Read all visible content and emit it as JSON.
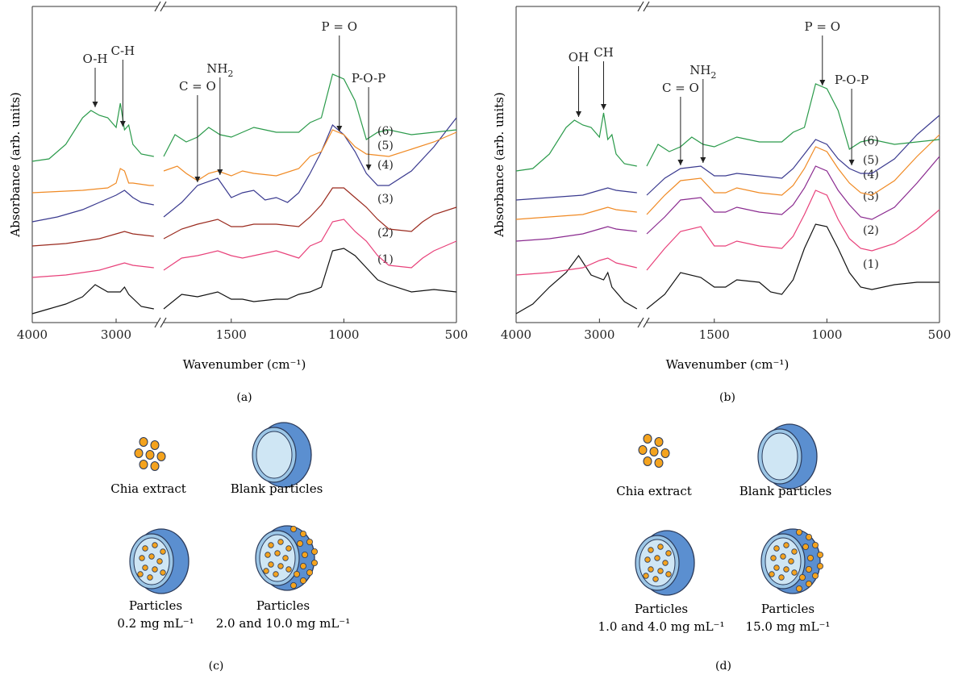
{
  "colors": {
    "s1": "#111111",
    "s2": "#e8417a",
    "s3_a": "#9a2a1e",
    "s3_b": "#8a2a8f",
    "s4": "#3a3a8f",
    "s5": "#f08a24",
    "s6": "#2a9a4a",
    "particle": "#f4a31e",
    "shell_dark": "#5b8fd0",
    "shell_light": "#cfe6f4",
    "outline": "#2a3a5a"
  },
  "chart_data": [
    {
      "panel_label": "(a)",
      "type": "line",
      "xlabel": "Wavenumber (cm⁻¹)",
      "ylabel": "Absorbance (arb. units)",
      "xlim": [
        4000,
        500
      ],
      "axis_break": [
        2500,
        1800
      ],
      "xticks": [
        "4000",
        "3000",
        "1500",
        "1000",
        "500"
      ],
      "series": [
        {
          "name": "(1)",
          "color_key": "s1",
          "offset": 0,
          "x": [
            4000,
            3800,
            3600,
            3400,
            3250,
            3100,
            2950,
            2900,
            2850,
            2700,
            2550,
            1800,
            1720,
            1650,
            1560,
            1500,
            1450,
            1400,
            1300,
            1250,
            1200,
            1150,
            1100,
            1050,
            1000,
            950,
            900,
            850,
            800,
            700,
            600,
            500
          ],
          "y": [
            0.1,
            0.3,
            0.5,
            0.8,
            1.3,
            1.0,
            1.0,
            1.2,
            0.9,
            0.4,
            0.3,
            0.3,
            0.9,
            0.8,
            1.0,
            0.7,
            0.7,
            0.6,
            0.7,
            0.7,
            0.9,
            1.0,
            1.2,
            2.7,
            2.8,
            2.5,
            2.0,
            1.5,
            1.3,
            1.0,
            1.1,
            1.0
          ]
        },
        {
          "name": "(2)",
          "color_key": "s2",
          "offset": 1.5,
          "x": [
            4000,
            3600,
            3200,
            3000,
            2900,
            2800,
            2550,
            1800,
            1720,
            1650,
            1560,
            1500,
            1450,
            1400,
            1300,
            1200,
            1150,
            1100,
            1050,
            1000,
            950,
            900,
            850,
            800,
            700,
            650,
            600,
            500
          ],
          "y": [
            0.1,
            0.2,
            0.4,
            0.6,
            0.7,
            0.6,
            0.5,
            0.4,
            0.9,
            1.0,
            1.2,
            1.0,
            0.9,
            1.0,
            1.2,
            0.9,
            1.4,
            1.6,
            2.4,
            2.5,
            2.0,
            1.6,
            1.0,
            0.6,
            0.5,
            0.9,
            1.2,
            1.6
          ]
        },
        {
          "name": "(3)",
          "color_key": "s3_a",
          "offset": 2.8,
          "x": [
            4000,
            3600,
            3200,
            3000,
            2900,
            2800,
            2550,
            1800,
            1720,
            1650,
            1560,
            1500,
            1450,
            1400,
            1300,
            1200,
            1150,
            1100,
            1050,
            1000,
            950,
            900,
            850,
            800,
            700,
            650,
            600,
            500
          ],
          "y": [
            0.1,
            0.2,
            0.4,
            0.6,
            0.7,
            0.6,
            0.5,
            0.4,
            0.8,
            1.0,
            1.2,
            0.9,
            0.9,
            1.0,
            1.0,
            0.9,
            1.3,
            1.8,
            2.5,
            2.5,
            2.1,
            1.7,
            1.2,
            0.8,
            0.7,
            1.1,
            1.4,
            1.7
          ]
        },
        {
          "name": "(4)",
          "color_key": "s4",
          "offset": 3.8,
          "x": [
            4000,
            3700,
            3400,
            3200,
            3000,
            2900,
            2800,
            2700,
            2550,
            1800,
            1720,
            1650,
            1560,
            1500,
            1450,
            1400,
            1350,
            1300,
            1250,
            1200,
            1150,
            1100,
            1050,
            1000,
            950,
            900,
            850,
            800,
            700,
            600,
            500
          ],
          "y": [
            0.1,
            0.3,
            0.6,
            0.9,
            1.2,
            1.4,
            1.1,
            0.9,
            0.8,
            0.3,
            0.9,
            1.6,
            1.9,
            1.1,
            1.3,
            1.4,
            1.0,
            1.1,
            0.9,
            1.3,
            2.1,
            3.0,
            4.1,
            3.7,
            3.0,
            2.1,
            1.6,
            1.6,
            2.2,
            3.2,
            4.4
          ]
        },
        {
          "name": "(5)",
          "color_key": "s5",
          "offset": 5.0,
          "x": [
            4000,
            3400,
            3100,
            3000,
            2950,
            2900,
            2850,
            2800,
            2600,
            2550,
            1800,
            1740,
            1700,
            1650,
            1600,
            1560,
            1500,
            1450,
            1400,
            1300,
            1200,
            1150,
            1100,
            1050,
            1000,
            950,
            900,
            800,
            700,
            600,
            500
          ],
          "y": [
            0.1,
            0.2,
            0.3,
            0.5,
            1.1,
            1.0,
            0.5,
            0.5,
            0.4,
            0.4,
            1.0,
            1.2,
            0.9,
            0.6,
            0.9,
            1.0,
            0.8,
            1.0,
            0.9,
            0.8,
            1.1,
            1.6,
            1.8,
            2.7,
            2.5,
            2.0,
            1.7,
            1.6,
            1.9,
            2.2,
            2.6
          ]
        },
        {
          "name": "(6)",
          "color_key": "s6",
          "offset": 6.3,
          "x": [
            4000,
            3800,
            3600,
            3400,
            3300,
            3200,
            3100,
            3000,
            2950,
            2900,
            2850,
            2800,
            2700,
            2550,
            1800,
            1750,
            1700,
            1650,
            1600,
            1550,
            1500,
            1450,
            1400,
            1350,
            1300,
            1250,
            1200,
            1150,
            1100,
            1050,
            1000,
            950,
            900,
            850,
            800,
            700,
            600,
            500
          ],
          "y": [
            0.1,
            0.2,
            0.8,
            1.9,
            2.2,
            2.0,
            1.9,
            1.5,
            2.5,
            1.4,
            1.6,
            0.8,
            0.4,
            0.3,
            0.3,
            1.2,
            0.9,
            1.1,
            1.5,
            1.2,
            1.1,
            1.3,
            1.5,
            1.4,
            1.3,
            1.3,
            1.3,
            1.7,
            1.9,
            3.7,
            3.5,
            2.6,
            1.0,
            1.3,
            1.4,
            1.2,
            1.3,
            1.4
          ]
        }
      ],
      "annotations": [
        {
          "text": "O-H",
          "x": 3250,
          "tip_series": "(6)"
        },
        {
          "text": "C-H",
          "x": 2920,
          "tip_series": "(6)"
        },
        {
          "text": "C = O",
          "x": 1650,
          "tip_series": "(4)"
        },
        {
          "text": "NH",
          "sub": "2",
          "x": 1550,
          "tip_series": "(4)"
        },
        {
          "text": "P = O",
          "x": 1020,
          "tip_series": "(5)"
        },
        {
          "text": "P-O-P",
          "x": 890,
          "tip_series": "(4)"
        }
      ]
    },
    {
      "panel_label": "(b)",
      "type": "line",
      "xlabel": "Wavenumber (cm⁻¹)",
      "ylabel": "Absorbance (arb. units)",
      "xlim": [
        4000,
        500
      ],
      "axis_break": [
        2500,
        1800
      ],
      "xticks": [
        "4000",
        "3000",
        "1500",
        "1000",
        "500"
      ],
      "series": [
        {
          "name": "(1)",
          "color_key": "s1",
          "offset": 0,
          "x": [
            4000,
            3800,
            3600,
            3400,
            3250,
            3100,
            2950,
            2900,
            2850,
            2700,
            2550,
            1800,
            1720,
            1650,
            1560,
            1500,
            1450,
            1400,
            1300,
            1250,
            1200,
            1150,
            1100,
            1050,
            1000,
            950,
            900,
            850,
            800,
            700,
            600,
            500
          ],
          "y": [
            0.1,
            0.5,
            1.2,
            1.8,
            2.5,
            1.7,
            1.5,
            1.8,
            1.2,
            0.6,
            0.3,
            0.3,
            0.9,
            1.8,
            1.6,
            1.2,
            1.2,
            1.5,
            1.4,
            1.0,
            0.9,
            1.5,
            2.8,
            3.8,
            3.7,
            2.8,
            1.8,
            1.2,
            1.1,
            1.3,
            1.4,
            1.4
          ]
        },
        {
          "name": "(2)",
          "color_key": "s2",
          "offset": 1.6,
          "x": [
            4000,
            3600,
            3200,
            3000,
            2900,
            2800,
            2550,
            1800,
            1720,
            1650,
            1560,
            1500,
            1450,
            1400,
            1300,
            1200,
            1150,
            1100,
            1050,
            1000,
            950,
            900,
            850,
            800,
            700,
            600,
            500
          ],
          "y": [
            0.1,
            0.2,
            0.4,
            0.7,
            0.8,
            0.6,
            0.4,
            0.3,
            1.2,
            1.9,
            2.1,
            1.3,
            1.3,
            1.5,
            1.3,
            1.2,
            1.7,
            2.6,
            3.6,
            3.4,
            2.4,
            1.6,
            1.2,
            1.1,
            1.4,
            2.0,
            2.8
          ]
        },
        {
          "name": "(3)",
          "color_key": "s3_b",
          "offset": 3.0,
          "x": [
            4000,
            3600,
            3200,
            3000,
            2900,
            2800,
            2550,
            1800,
            1720,
            1650,
            1560,
            1500,
            1450,
            1400,
            1300,
            1200,
            1150,
            1100,
            1050,
            1000,
            950,
            900,
            850,
            800,
            700,
            600,
            500
          ],
          "y": [
            0.1,
            0.2,
            0.4,
            0.6,
            0.7,
            0.6,
            0.5,
            0.4,
            1.1,
            1.8,
            1.9,
            1.3,
            1.3,
            1.5,
            1.3,
            1.2,
            1.6,
            2.3,
            3.2,
            3.0,
            2.2,
            1.6,
            1.1,
            1.0,
            1.5,
            2.5,
            3.6
          ]
        },
        {
          "name": "(4)",
          "color_key": "s5",
          "offset": 3.9,
          "x": [
            4000,
            3600,
            3200,
            3000,
            2900,
            2800,
            2550,
            1800,
            1720,
            1650,
            1560,
            1500,
            1450,
            1400,
            1300,
            1200,
            1150,
            1100,
            1050,
            1000,
            950,
            900,
            850,
            800,
            700,
            600,
            500
          ],
          "y": [
            0.1,
            0.2,
            0.3,
            0.5,
            0.6,
            0.5,
            0.4,
            0.3,
            1.1,
            1.7,
            1.8,
            1.2,
            1.2,
            1.4,
            1.2,
            1.1,
            1.5,
            2.2,
            3.1,
            2.9,
            2.2,
            1.6,
            1.2,
            1.1,
            1.7,
            2.7,
            3.6
          ]
        },
        {
          "name": "(5)",
          "color_key": "s4",
          "offset": 4.7,
          "x": [
            4000,
            3600,
            3200,
            3000,
            2900,
            2800,
            2550,
            1800,
            1720,
            1650,
            1560,
            1500,
            1450,
            1400,
            1300,
            1200,
            1150,
            1100,
            1050,
            1000,
            950,
            900,
            850,
            800,
            700,
            600,
            500
          ],
          "y": [
            0.1,
            0.2,
            0.3,
            0.5,
            0.6,
            0.5,
            0.4,
            0.3,
            1.0,
            1.4,
            1.5,
            1.1,
            1.1,
            1.2,
            1.1,
            1.0,
            1.4,
            2.0,
            2.6,
            2.4,
            1.8,
            1.4,
            1.2,
            1.2,
            1.8,
            2.8,
            3.6
          ]
        },
        {
          "name": "(6)",
          "color_key": "s6",
          "offset": 5.9,
          "x": [
            4000,
            3800,
            3600,
            3400,
            3300,
            3200,
            3100,
            3000,
            2950,
            2900,
            2850,
            2800,
            2700,
            2550,
            1800,
            1750,
            1700,
            1650,
            1600,
            1550,
            1500,
            1450,
            1400,
            1350,
            1300,
            1250,
            1200,
            1150,
            1100,
            1050,
            1000,
            950,
            900,
            850,
            800,
            700,
            600,
            500
          ],
          "y": [
            0.1,
            0.2,
            0.8,
            1.9,
            2.2,
            2.0,
            1.9,
            1.5,
            2.5,
            1.4,
            1.6,
            0.8,
            0.4,
            0.3,
            0.3,
            1.2,
            0.9,
            1.1,
            1.5,
            1.2,
            1.1,
            1.3,
            1.5,
            1.4,
            1.3,
            1.3,
            1.3,
            1.7,
            1.9,
            3.7,
            3.5,
            2.6,
            1.0,
            1.3,
            1.4,
            1.2,
            1.3,
            1.4
          ]
        }
      ],
      "annotations": [
        {
          "text": "OH",
          "x": 3250,
          "tip_series": "(6)"
        },
        {
          "text": "CH",
          "x": 2950,
          "tip_series": "(6)"
        },
        {
          "text": "C = O",
          "x": 1650,
          "tip_series": "(5)"
        },
        {
          "text": "NH",
          "sub": "2",
          "x": 1550,
          "tip_series": "(5)"
        },
        {
          "text": "P = O",
          "x": 1020,
          "tip_series": "(6)"
        },
        {
          "text": "P-O-P",
          "x": 890,
          "tip_series": "(5)"
        }
      ]
    }
  ],
  "diagrams": [
    {
      "panel_label": "(c)",
      "items": [
        {
          "kind": "extract",
          "label": "Chia extract"
        },
        {
          "kind": "blank",
          "label": "Blank particles"
        },
        {
          "kind": "inside",
          "label_line1": "Particles",
          "label_line2": "0.2 mg mL⁻¹"
        },
        {
          "kind": "outside",
          "label_line1": "Particles",
          "label_line2": "2.0 and 10.0 mg mL⁻¹"
        }
      ]
    },
    {
      "panel_label": "(d)",
      "items": [
        {
          "kind": "extract",
          "label": "Chia extract"
        },
        {
          "kind": "blank",
          "label": "Blank particles"
        },
        {
          "kind": "inside",
          "label_line1": "Particles",
          "label_line2": "1.0 and 4.0 mg mL⁻¹"
        },
        {
          "kind": "outside",
          "label_line1": "Particles",
          "label_line2": "15.0 mg mL⁻¹"
        }
      ]
    }
  ]
}
